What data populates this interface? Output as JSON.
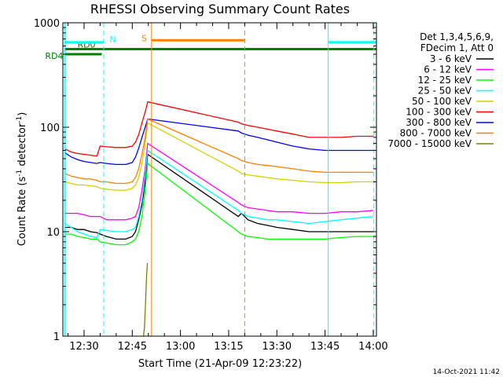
{
  "chart_data": {
    "type": "line",
    "title": "RHESSI Observing Summary Count Rates",
    "xlabel": "Start Time (21-Apr-09 12:23:22)",
    "ylabel_main": "Count Rate (s",
    "ylabel_sup1": "-1",
    "ylabel_mid": " detector",
    "ylabel_sup2": "-1",
    "ylabel_end": ")",
    "yscale": "log",
    "xlim": [
      23.4,
      121
    ],
    "ylim": [
      1,
      1000
    ],
    "x_ticks": [
      {
        "v": 30,
        "label": "12:30"
      },
      {
        "v": 45,
        "label": "12:45"
      },
      {
        "v": 60,
        "label": "13:00"
      },
      {
        "v": 75,
        "label": "13:15"
      },
      {
        "v": 90,
        "label": "13:30"
      },
      {
        "v": 105,
        "label": "13:45"
      },
      {
        "v": 120,
        "label": "14:00"
      }
    ],
    "y_ticks": [
      {
        "v": 1,
        "label": "1"
      },
      {
        "v": 10,
        "label": "10"
      },
      {
        "v": 100,
        "label": "100"
      },
      {
        "v": 1000,
        "label": "1000"
      }
    ],
    "legend_header": [
      "Det 1,3,4,5,6,9,",
      "FDecim 1, Att 0"
    ],
    "legend_position": "right",
    "series": [
      {
        "name": "3 - 6 keV",
        "color": "#000000",
        "x": [
          24,
          26,
          28,
          30,
          32,
          34,
          35,
          37,
          40,
          43,
          45,
          46,
          47,
          48,
          49,
          49.8,
          78,
          79,
          81,
          84,
          87,
          90,
          95,
          100,
          105,
          110,
          115,
          120
        ],
        "y": [
          11,
          11,
          10.5,
          10.5,
          10,
          9.8,
          9.5,
          9,
          8.5,
          8.5,
          9,
          10,
          13,
          18,
          30,
          55,
          14,
          15,
          13,
          12,
          11.5,
          11,
          10.5,
          10,
          10,
          10,
          10,
          10
        ]
      },
      {
        "name": "6 - 12 keV",
        "color": "#ff00ff",
        "x": [
          24,
          26,
          28,
          30,
          32,
          34,
          35,
          37,
          40,
          43,
          45,
          46,
          47,
          48,
          49,
          49.8,
          78,
          79,
          81,
          84,
          87,
          90,
          95,
          100,
          105,
          110,
          115,
          120
        ],
        "y": [
          15,
          15,
          15,
          14.5,
          14,
          14,
          14,
          13,
          13,
          13,
          13.5,
          14,
          17,
          25,
          40,
          70,
          19,
          18,
          17,
          16.5,
          16,
          15.5,
          15.5,
          15,
          15,
          15.5,
          15.5,
          16
        ]
      },
      {
        "name": "12 - 25 keV",
        "color": "#00ff00",
        "x": [
          24,
          26,
          28,
          30,
          32,
          34,
          35,
          37,
          40,
          43,
          45,
          46,
          47,
          48,
          49,
          49.8,
          78,
          79,
          81,
          84,
          87,
          90,
          95,
          100,
          105,
          110,
          115,
          120
        ],
        "y": [
          9.5,
          9.5,
          9,
          8.8,
          8.5,
          8.5,
          8,
          7.8,
          7.5,
          7.5,
          8,
          8.5,
          10,
          14,
          25,
          45,
          10,
          9.5,
          9,
          8.8,
          8.5,
          8.5,
          8.5,
          8.5,
          8.5,
          8.8,
          9,
          9
        ]
      },
      {
        "name": "25 - 50 keV",
        "color": "#00ffff",
        "x": [
          24,
          26,
          28,
          30,
          32,
          34,
          35,
          37,
          40,
          43,
          45,
          46,
          47,
          48,
          49,
          49.8,
          78,
          79,
          81,
          84,
          87,
          90,
          95,
          100,
          105,
          110,
          115,
          120
        ],
        "y": [
          12,
          11,
          10,
          9.5,
          9,
          8.8,
          10.5,
          10.3,
          10,
          10,
          10.5,
          11,
          14,
          20,
          35,
          60,
          16,
          15,
          14,
          13.5,
          13,
          13,
          12.5,
          12,
          12.5,
          13,
          13.5,
          14
        ]
      },
      {
        "name": "50 - 100 keV",
        "color": "#d2d200",
        "x": [
          24,
          26,
          28,
          30,
          32,
          34,
          35,
          37,
          40,
          43,
          45,
          46,
          47,
          48,
          49,
          49.8,
          78,
          79,
          81,
          84,
          87,
          90,
          95,
          100,
          105,
          110,
          115,
          120
        ],
        "y": [
          30,
          29,
          28,
          28,
          27.5,
          27,
          26,
          25.5,
          25,
          25,
          26,
          28,
          33,
          45,
          70,
          110,
          38,
          36,
          35,
          34,
          33,
          32,
          31,
          30,
          29.5,
          29.5,
          30,
          30
        ]
      },
      {
        "name": "100 - 300 keV",
        "color": "#ff0000",
        "x": [
          24,
          26,
          28,
          30,
          32,
          34,
          35,
          37,
          40,
          43,
          45,
          46,
          47,
          48,
          49,
          49.8,
          78,
          79,
          81,
          84,
          87,
          90,
          95,
          100,
          105,
          110,
          115,
          120
        ],
        "y": [
          62,
          58,
          56,
          55,
          54,
          53,
          66,
          65,
          64,
          64,
          66,
          72,
          85,
          110,
          140,
          175,
          112,
          108,
          104,
          100,
          96,
          92,
          86,
          80,
          80,
          80,
          82,
          82
        ]
      },
      {
        "name": "300 - 800 keV",
        "color": "#0000ff",
        "x": [
          24,
          26,
          28,
          30,
          32,
          34,
          35,
          37,
          40,
          43,
          45,
          46,
          47,
          48,
          49,
          49.8,
          78,
          79,
          81,
          84,
          87,
          90,
          95,
          100,
          105,
          110,
          115,
          120
        ],
        "y": [
          57,
          52,
          49,
          47,
          46,
          45,
          46,
          45,
          44,
          44,
          46,
          52,
          63,
          80,
          100,
          120,
          92,
          88,
          84,
          80,
          76,
          72,
          66,
          62,
          60,
          60,
          60,
          60
        ]
      },
      {
        "name": "800 - 7000 keV",
        "color": "#ff8000",
        "x": [
          24,
          26,
          28,
          30,
          32,
          34,
          35,
          37,
          40,
          43,
          45,
          46,
          47,
          48,
          49,
          49.8,
          78,
          79,
          81,
          84,
          87,
          90,
          95,
          100,
          105,
          110,
          115,
          120
        ],
        "y": [
          36,
          34,
          33,
          32,
          32,
          31,
          30,
          30,
          29,
          29,
          30,
          33,
          40,
          55,
          80,
          120,
          50,
          48,
          46,
          44,
          43,
          42,
          40,
          38,
          37,
          37,
          37,
          37
        ]
      },
      {
        "name": "7000 - 15000 keV",
        "color": "#808000",
        "x": [
          48.5,
          48.8,
          49.1,
          49.4,
          49.7
        ],
        "y": [
          1,
          1.2,
          2,
          3.5,
          5
        ]
      }
    ],
    "period_markers": [
      {
        "label": "RD4",
        "x_start": 24,
        "x_end": 35.5,
        "level": 500,
        "color": "#008000"
      },
      {
        "label": "RD0",
        "x_start": 24,
        "x_end": 121,
        "level": 560,
        "color": "#008000"
      },
      {
        "label": "S",
        "x_start": 51,
        "x_end": 80,
        "level": 680,
        "color": "#ff8000"
      },
      {
        "label": "N",
        "x_start": 24,
        "x_end": 36,
        "level": 650,
        "color": "#00ffff"
      },
      {
        "label": "",
        "x_start": 106,
        "x_end": 121,
        "level": 650,
        "color": "#00ffff"
      }
    ],
    "vertical_lines": [
      {
        "x": 24,
        "style": "solid",
        "color": "#00ffff"
      },
      {
        "x": 36.1,
        "style": "dashed",
        "color": "#00ffff"
      },
      {
        "x": 51,
        "style": "solid",
        "color": "#ff8000"
      },
      {
        "x": 80,
        "style": "dashed",
        "color": "#ff8000"
      },
      {
        "x": 106,
        "style": "solid",
        "color": "#00ffff"
      },
      {
        "x": 120.2,
        "style": "dashed",
        "color": "#00ffff"
      }
    ]
  },
  "timestamp": "14-Oct-2021 11:42"
}
